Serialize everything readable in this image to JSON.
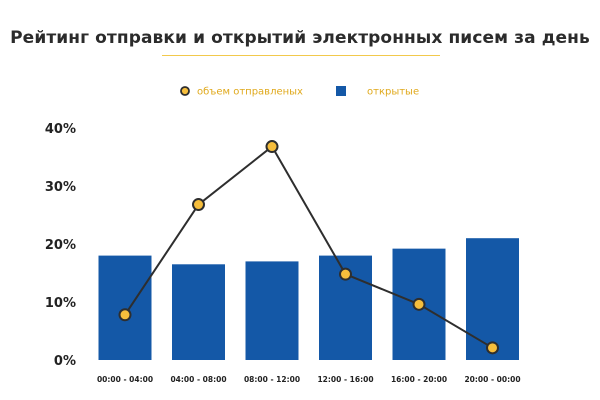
{
  "colors": {
    "bar": "#1458a7",
    "line": "#2e2e2e",
    "marker_fill": "#f6be3c",
    "marker_stroke": "#2e2e2e",
    "legend_text": "#e0a91c",
    "title_rule": "#f2c94c"
  },
  "chart_data": {
    "type": "bar",
    "title": "Рейтинг отправки и открытий электронных писем за день",
    "xlabel": "",
    "ylabel": "",
    "categories": [
      "00:00 - 04:00",
      "04:00 - 08:00",
      "08:00 - 12:00",
      "12:00 - 16:00",
      "16:00 - 20:00",
      "20:00 - 00:00"
    ],
    "yticks": [
      "0%",
      "10%",
      "20%",
      "30%",
      "40%"
    ],
    "ylim": [
      0,
      40
    ],
    "grid": false,
    "legend_position": "top-center",
    "series": [
      {
        "name": "объем отправленых",
        "type": "line",
        "values": [
          7.8,
          26.8,
          36.8,
          14.8,
          9.6,
          2.1
        ]
      },
      {
        "name": "открытые",
        "type": "bar",
        "values": [
          18.0,
          16.5,
          17.0,
          18.0,
          19.2,
          21.0
        ]
      }
    ]
  }
}
